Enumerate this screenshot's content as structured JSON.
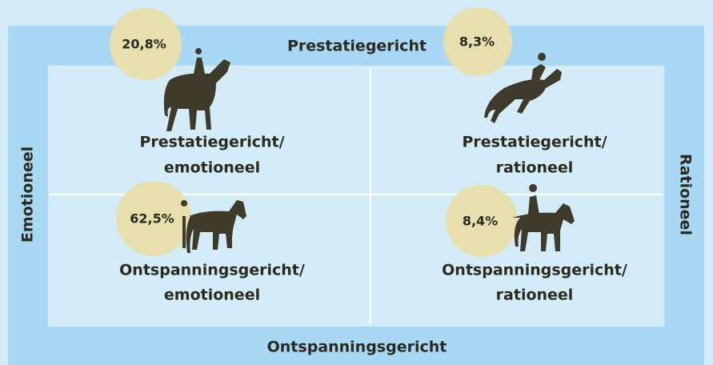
{
  "axes": {
    "top": "Prestatiegericht",
    "bottom": "Ontspanningsgericht",
    "left": "Emotioneel",
    "right": "Rationeel"
  },
  "quadrants": [
    {
      "percentage": "20,8%",
      "label": [
        "Prestatiegericht/",
        "emotioneel"
      ]
    },
    {
      "percentage": "8,3%",
      "label": [
        "Prestatiegericht/",
        "rationeel"
      ]
    },
    {
      "percentage": "62,5%",
      "label": [
        "Ontspanningsgericht/",
        "emotioneel"
      ]
    },
    {
      "percentage": "8,4%",
      "label": [
        "Ontspanningsgericht/",
        "rationeel"
      ]
    }
  ]
}
